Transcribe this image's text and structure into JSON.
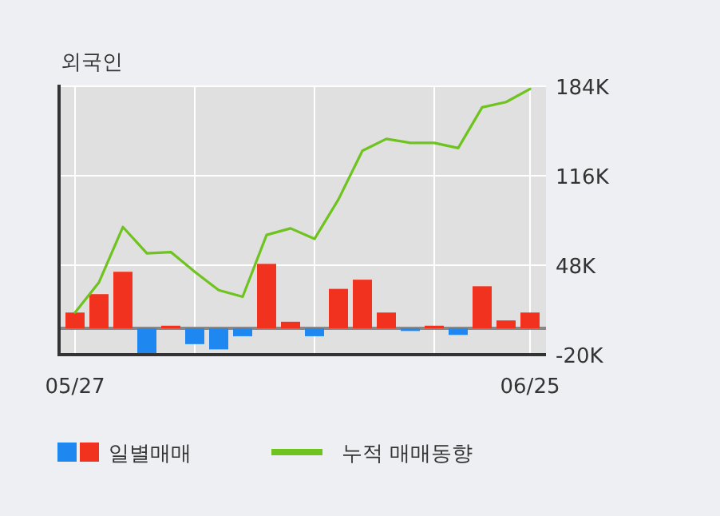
{
  "chart_data": {
    "type": "bar",
    "title": "외국인",
    "categories": [
      "05/27",
      null,
      null,
      null,
      null,
      null,
      null,
      null,
      null,
      null,
      null,
      null,
      null,
      null,
      null,
      null,
      null,
      null,
      null,
      "06/25"
    ],
    "series": [
      {
        "name": "일별매매",
        "colors": [
          "#f0321e",
          "#f0321e",
          "#f0321e",
          "#1e87f0",
          "#f0321e",
          "#1e87f0",
          "#1e87f0",
          "#1e87f0",
          "#f0321e",
          "#f0321e",
          "#1e87f0",
          "#f0321e",
          "#f0321e",
          "#f0321e",
          "#1e87f0",
          "#f0321e",
          "#1e87f0",
          "#f0321e",
          "#f0321e",
          "#f0321e"
        ],
        "values": [
          12,
          26,
          43,
          -20,
          2,
          -12,
          -16,
          -6,
          49,
          5,
          -6,
          30,
          37,
          12,
          -2,
          2,
          -5,
          32,
          6,
          12
        ]
      },
      {
        "name": "누적 매매동향",
        "type": "line",
        "color": "#6ec31e",
        "values": [
          12,
          35,
          77,
          57,
          58,
          43,
          29,
          24,
          71,
          76,
          68,
          98,
          135,
          144,
          141,
          141,
          137,
          168,
          172,
          182
        ]
      }
    ],
    "ylim": [
      -20,
      184
    ],
    "yticks": [
      {
        "value": 184,
        "label": "184K"
      },
      {
        "value": 116,
        "label": "116K"
      },
      {
        "value": 48,
        "label": "48K"
      },
      {
        "value": -20,
        "label": "-20K"
      }
    ],
    "grid": true,
    "legend": "bottom"
  }
}
